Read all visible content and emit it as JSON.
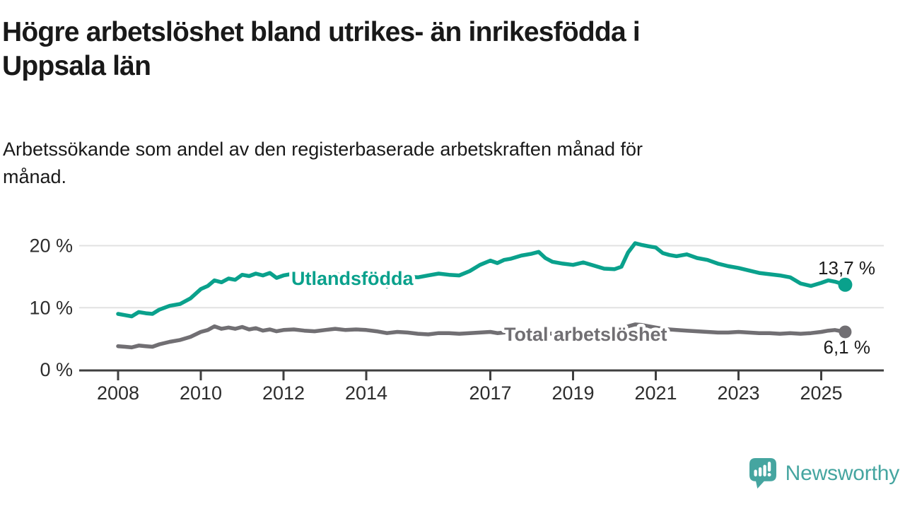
{
  "header": {
    "title": "Högre arbetslöshet bland utrikes- än inrikesfödda i\nUppsala län",
    "subtitle": "Arbetssökande som andel av den registerbaserade arbetskraften månad för\nmånad."
  },
  "footer": {
    "brand": "Newsworthy"
  },
  "colors": {
    "accent_teal": "#0aa18c",
    "line_gray": "#716f73",
    "logo_teal": "#45a5a0",
    "grid": "#e2e2e2",
    "axis": "#3f3f3f",
    "text": "#191919"
  },
  "chart_data": {
    "type": "line",
    "title": "Högre arbetslöshet bland utrikes- än inrikesfödda i Uppsala län",
    "subtitle": "Arbetssökande som andel av den registerbaserade arbetskraften månad för månad.",
    "unit": "%",
    "xlim": [
      2007.1,
      2026.4
    ],
    "ylim": [
      0,
      22
    ],
    "grid": "horizontal",
    "legend": "inline-labels",
    "yticks": [
      {
        "value": 0,
        "label": "0 %"
      },
      {
        "value": 10,
        "label": "10 %"
      },
      {
        "value": 20,
        "label": "20 %"
      }
    ],
    "xticks": [
      {
        "value": 2008,
        "label": "2008"
      },
      {
        "value": 2010,
        "label": "2010"
      },
      {
        "value": 2012,
        "label": "2012"
      },
      {
        "value": 2014,
        "label": "2014"
      },
      {
        "value": 2017,
        "label": "2017"
      },
      {
        "value": 2019,
        "label": "2019"
      },
      {
        "value": 2021,
        "label": "2021"
      },
      {
        "value": 2023,
        "label": "2023"
      },
      {
        "value": 2025,
        "label": "2025"
      }
    ],
    "series": [
      {
        "name": "Utlandsfödda",
        "color": "#0aa18c",
        "end_label": "13,7 %",
        "end_value": 13.7,
        "x": [
          2008.0,
          2008.17,
          2008.33,
          2008.5,
          2008.67,
          2008.83,
          2009.0,
          2009.25,
          2009.5,
          2009.75,
          2010.0,
          2010.17,
          2010.33,
          2010.5,
          2010.67,
          2010.83,
          2011.0,
          2011.17,
          2011.33,
          2011.5,
          2011.67,
          2011.83,
          2012.0,
          2012.25,
          2012.5,
          2012.75,
          2013.0,
          2013.25,
          2013.5,
          2013.75,
          2014.0,
          2014.25,
          2014.5,
          2014.75,
          2015.0,
          2015.25,
          2015.5,
          2015.75,
          2016.0,
          2016.25,
          2016.5,
          2016.75,
          2017.0,
          2017.17,
          2017.33,
          2017.5,
          2017.75,
          2018.0,
          2018.17,
          2018.33,
          2018.5,
          2018.75,
          2019.0,
          2019.25,
          2019.5,
          2019.75,
          2020.0,
          2020.17,
          2020.33,
          2020.5,
          2020.67,
          2020.83,
          2021.0,
          2021.17,
          2021.33,
          2021.5,
          2021.75,
          2022.0,
          2022.25,
          2022.5,
          2022.75,
          2023.0,
          2023.25,
          2023.5,
          2023.75,
          2024.0,
          2024.25,
          2024.5,
          2024.75,
          2025.0,
          2025.17,
          2025.33,
          2025.58
        ],
        "values": [
          9.0,
          8.8,
          8.6,
          9.3,
          9.1,
          9.0,
          9.7,
          10.3,
          10.6,
          11.5,
          13.0,
          13.5,
          14.4,
          14.1,
          14.7,
          14.5,
          15.3,
          15.1,
          15.5,
          15.2,
          15.6,
          14.8,
          15.2,
          15.5,
          15.0,
          14.7,
          15.2,
          15.5,
          15.0,
          15.3,
          15.4,
          15.0,
          13.4,
          14.7,
          15.0,
          14.9,
          15.2,
          15.5,
          15.3,
          15.2,
          15.9,
          16.9,
          17.6,
          17.2,
          17.7,
          17.9,
          18.4,
          18.7,
          19.0,
          18.0,
          17.4,
          17.1,
          16.9,
          17.3,
          16.8,
          16.3,
          16.2,
          16.6,
          18.9,
          20.4,
          20.1,
          19.9,
          19.7,
          18.8,
          18.5,
          18.3,
          18.6,
          18.0,
          17.7,
          17.1,
          16.7,
          16.4,
          16.0,
          15.6,
          15.4,
          15.2,
          14.9,
          13.9,
          13.5,
          14.0,
          14.4,
          14.2,
          13.7
        ]
      },
      {
        "name": "Total arbetslöshet",
        "color": "#716f73",
        "end_label": "6,1 %",
        "end_value": 6.1,
        "x": [
          2008.0,
          2008.17,
          2008.33,
          2008.5,
          2008.67,
          2008.83,
          2009.0,
          2009.25,
          2009.5,
          2009.75,
          2010.0,
          2010.17,
          2010.33,
          2010.5,
          2010.67,
          2010.83,
          2011.0,
          2011.17,
          2011.33,
          2011.5,
          2011.67,
          2011.83,
          2012.0,
          2012.25,
          2012.5,
          2012.75,
          2013.0,
          2013.25,
          2013.5,
          2013.75,
          2014.0,
          2014.25,
          2014.5,
          2014.75,
          2015.0,
          2015.25,
          2015.5,
          2015.75,
          2016.0,
          2016.25,
          2016.5,
          2016.75,
          2017.0,
          2017.17,
          2017.33,
          2017.5,
          2017.75,
          2018.0,
          2018.17,
          2018.33,
          2018.5,
          2018.75,
          2019.0,
          2019.25,
          2019.5,
          2019.75,
          2020.0,
          2020.17,
          2020.33,
          2020.5,
          2020.67,
          2020.83,
          2021.0,
          2021.17,
          2021.33,
          2021.5,
          2021.75,
          2022.0,
          2022.25,
          2022.5,
          2022.75,
          2023.0,
          2023.25,
          2023.5,
          2023.75,
          2024.0,
          2024.25,
          2024.5,
          2024.75,
          2025.0,
          2025.17,
          2025.33,
          2025.58
        ],
        "values": [
          3.8,
          3.7,
          3.6,
          3.9,
          3.8,
          3.7,
          4.1,
          4.5,
          4.8,
          5.3,
          6.1,
          6.4,
          7.0,
          6.6,
          6.8,
          6.6,
          6.9,
          6.5,
          6.7,
          6.3,
          6.5,
          6.2,
          6.4,
          6.5,
          6.3,
          6.2,
          6.4,
          6.6,
          6.4,
          6.5,
          6.4,
          6.2,
          5.9,
          6.1,
          6.0,
          5.8,
          5.7,
          5.9,
          5.9,
          5.8,
          5.9,
          6.0,
          6.1,
          5.9,
          6.0,
          6.1,
          6.0,
          6.0,
          6.1,
          5.9,
          5.8,
          5.9,
          5.9,
          6.0,
          5.9,
          6.0,
          6.2,
          6.4,
          7.0,
          7.3,
          7.2,
          7.0,
          6.8,
          6.6,
          6.5,
          6.4,
          6.3,
          6.2,
          6.1,
          6.0,
          6.0,
          6.1,
          6.0,
          5.9,
          5.9,
          5.8,
          5.9,
          5.8,
          5.9,
          6.1,
          6.3,
          6.4,
          6.1
        ]
      }
    ]
  }
}
